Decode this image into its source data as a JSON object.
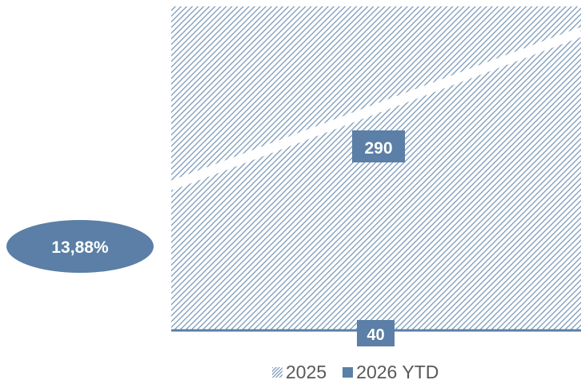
{
  "chart_data": {
    "type": "area",
    "series": [
      {
        "name": "2025",
        "fill": "hatched",
        "color": "#5b7fa6",
        "value": 290
      },
      {
        "name": "2026 YTD",
        "fill": "solid",
        "color": "#5b7fa6",
        "value": 40
      }
    ],
    "annotation": {
      "label": "13,88%",
      "color": "#5b7fa6"
    },
    "legend_position": "bottom"
  }
}
